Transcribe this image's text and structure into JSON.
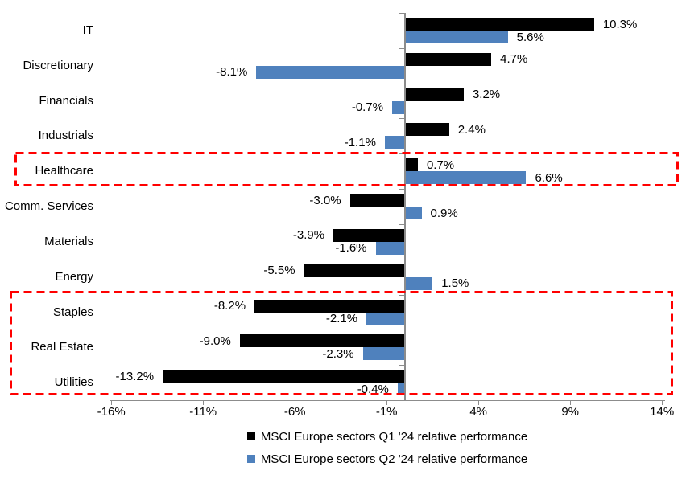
{
  "chart_data": {
    "type": "bar",
    "orientation": "horizontal",
    "title": "",
    "xlabel": "",
    "ylabel": "",
    "grid": false,
    "legend_position": "bottom",
    "categories": [
      "IT",
      "Discretionary",
      "Financials",
      "Industrials",
      "Healthcare",
      "Comm. Services",
      "Materials",
      "Energy",
      "Staples",
      "Real Estate",
      "Utilities"
    ],
    "series": [
      {
        "name": "MSCI Europe sectors Q1 '24 relative performance",
        "color": "#000000",
        "values": [
          10.3,
          4.7,
          3.2,
          2.4,
          0.7,
          -3.0,
          -3.9,
          -5.5,
          -8.2,
          -9.0,
          -13.2
        ],
        "labels": [
          "10.3%",
          "4.7%",
          "3.2%",
          "2.4%",
          "0.7%",
          "-3.0%",
          "-3.9%",
          "-5.5%",
          "-8.2%",
          "-9.0%",
          "-13.2%"
        ]
      },
      {
        "name": "MSCI Europe sectors Q2 '24 relative performance",
        "color": "#4F81BD",
        "values": [
          5.6,
          -8.1,
          -0.7,
          -1.1,
          6.6,
          0.9,
          -1.6,
          1.5,
          -2.1,
          -2.3,
          -0.4
        ],
        "labels": [
          "5.6%",
          "-8.1%",
          "-0.7%",
          "-1.1%",
          "6.6%",
          "0.9%",
          "-1.6%",
          "1.5%",
          "-2.1%",
          "-2.3%",
          "-0.4%"
        ]
      }
    ],
    "x_axis": {
      "min": -16,
      "max": 14,
      "ticks": [
        -16,
        -11,
        -6,
        -1,
        4,
        9,
        14
      ],
      "tick_labels": [
        "-16%",
        "-11%",
        "-6%",
        "-1%",
        "4%",
        "9%",
        "14%"
      ]
    },
    "highlights": [
      {
        "rows": [
          "Healthcare"
        ],
        "color": "#FF0000",
        "style": "dashed"
      },
      {
        "rows": [
          "Staples",
          "Real Estate",
          "Utilities"
        ],
        "color": "#FF0000",
        "style": "dashed"
      }
    ]
  }
}
